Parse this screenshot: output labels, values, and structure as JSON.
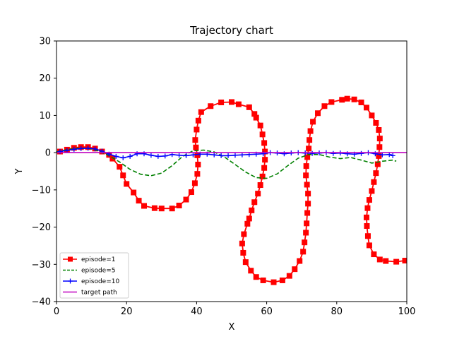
{
  "chart_data": {
    "type": "line",
    "title": "Trajectory chart",
    "xlabel": "X",
    "ylabel": "Y",
    "xlim": [
      0,
      100
    ],
    "ylim": [
      -40,
      30
    ],
    "xticks": [
      0,
      20,
      40,
      60,
      80,
      100
    ],
    "yticks": [
      -40,
      -30,
      -20,
      -10,
      0,
      10,
      20,
      30
    ],
    "grid": false,
    "legend_position": "lower-left",
    "series": [
      {
        "name": "episode=1",
        "color": "#ff0000",
        "style": "solid",
        "marker": "square",
        "points": [
          [
            1,
            0.3
          ],
          [
            3,
            0.8
          ],
          [
            5,
            1.3
          ],
          [
            7,
            1.5
          ],
          [
            9,
            1.5
          ],
          [
            11,
            1.1
          ],
          [
            13,
            0.3
          ],
          [
            15,
            -0.6
          ],
          [
            16,
            -1.6
          ],
          [
            18,
            -3.8
          ],
          [
            19,
            -6.1
          ],
          [
            20,
            -8.4
          ],
          [
            22,
            -10.7
          ],
          [
            23.5,
            -12.9
          ],
          [
            25,
            -14.3
          ],
          [
            28,
            -14.9
          ],
          [
            30,
            -15.0
          ],
          [
            33,
            -15.0
          ],
          [
            35,
            -14.2
          ],
          [
            37,
            -12.6
          ],
          [
            38.5,
            -10.6
          ],
          [
            39.5,
            -8.2
          ],
          [
            40.2,
            -5.7
          ],
          [
            40.4,
            -3.2
          ],
          [
            40.2,
            -0.7
          ],
          [
            39.8,
            1.4
          ],
          [
            39.6,
            3.4
          ],
          [
            40.0,
            6.2
          ],
          [
            40.5,
            8.6
          ],
          [
            41.3,
            10.9
          ],
          [
            44,
            12.5
          ],
          [
            47,
            13.5
          ],
          [
            50,
            13.6
          ],
          [
            52,
            13.0
          ],
          [
            55,
            12.2
          ],
          [
            56.5,
            10.4
          ],
          [
            57,
            9.4
          ],
          [
            58.2,
            7.3
          ],
          [
            58.8,
            4.9
          ],
          [
            59.3,
            2.6
          ],
          [
            59.5,
            0.3
          ],
          [
            59.5,
            -1.9
          ],
          [
            59.3,
            -4.1
          ],
          [
            58.8,
            -6.4
          ],
          [
            58.2,
            -8.7
          ],
          [
            57.5,
            -11.0
          ],
          [
            56.5,
            -13.3
          ],
          [
            55.7,
            -15.5
          ],
          [
            55.0,
            -17.7
          ],
          [
            54.5,
            -19.1
          ],
          [
            53.5,
            -21.9
          ],
          [
            53.0,
            -24.4
          ],
          [
            53.3,
            -26.9
          ],
          [
            54.0,
            -29.4
          ],
          [
            55.5,
            -31.7
          ],
          [
            57,
            -33.4
          ],
          [
            59,
            -34.3
          ],
          [
            62,
            -34.8
          ],
          [
            64.5,
            -34.3
          ],
          [
            66.5,
            -33.1
          ],
          [
            68,
            -31.3
          ],
          [
            69.4,
            -29.1
          ],
          [
            70.4,
            -26.6
          ],
          [
            70.8,
            -24.1
          ],
          [
            71.2,
            -21.5
          ],
          [
            71.4,
            -19.0
          ],
          [
            71.6,
            -16.2
          ],
          [
            71.8,
            -13.7
          ],
          [
            71.8,
            -11.0
          ],
          [
            71.5,
            -8.6
          ],
          [
            71.2,
            -6.1
          ],
          [
            71.3,
            -3.6
          ],
          [
            71.6,
            -1.2
          ],
          [
            72.0,
            1.1
          ],
          [
            72.2,
            3.4
          ],
          [
            72.5,
            5.8
          ],
          [
            73.2,
            8.3
          ],
          [
            74.6,
            10.6
          ],
          [
            76.5,
            12.5
          ],
          [
            78.5,
            13.6
          ],
          [
            81.5,
            14.2
          ],
          [
            83,
            14.5
          ],
          [
            85,
            14.3
          ],
          [
            87,
            13.5
          ],
          [
            88.5,
            12.1
          ],
          [
            90,
            10.0
          ],
          [
            91.2,
            8.0
          ],
          [
            92,
            6.1
          ],
          [
            92.3,
            3.8
          ],
          [
            92.2,
            1.5
          ],
          [
            92,
            -0.9
          ],
          [
            91.7,
            -3.1
          ],
          [
            91.2,
            -5.5
          ],
          [
            90.6,
            -7.9
          ],
          [
            90.0,
            -10.3
          ],
          [
            89.3,
            -12.7
          ],
          [
            88.8,
            -14.9
          ],
          [
            88.5,
            -17.4
          ],
          [
            88.6,
            -19.7
          ],
          [
            88.9,
            -22.4
          ],
          [
            89.3,
            -24.9
          ],
          [
            90.6,
            -27.3
          ],
          [
            92.3,
            -28.7
          ],
          [
            94,
            -29.1
          ],
          [
            97,
            -29.3
          ],
          [
            99.5,
            -29.0
          ]
        ]
      },
      {
        "name": "episode=5",
        "color": "#008000",
        "style": "dashed",
        "marker": "none",
        "points": [
          [
            0,
            0.2
          ],
          [
            3,
            0.8
          ],
          [
            6,
            1.2
          ],
          [
            9,
            1.2
          ],
          [
            12,
            0.5
          ],
          [
            15,
            -0.8
          ],
          [
            18,
            -2.5
          ],
          [
            21,
            -4.5
          ],
          [
            24,
            -5.8
          ],
          [
            27,
            -6.2
          ],
          [
            30,
            -5.5
          ],
          [
            33,
            -3.5
          ],
          [
            36,
            -1.0
          ],
          [
            39,
            0.5
          ],
          [
            42,
            0.7
          ],
          [
            45,
            0.2
          ],
          [
            48,
            -1.2
          ],
          [
            51,
            -3.2
          ],
          [
            54,
            -5.2
          ],
          [
            57,
            -6.7
          ],
          [
            60,
            -6.9
          ],
          [
            63,
            -5.7
          ],
          [
            66,
            -3.5
          ],
          [
            69,
            -1.5
          ],
          [
            72,
            -0.5
          ],
          [
            75,
            -0.5
          ],
          [
            78,
            -1.2
          ],
          [
            81,
            -1.6
          ],
          [
            84,
            -1.3
          ],
          [
            87,
            -2.0
          ],
          [
            90,
            -2.8
          ],
          [
            93,
            -2.3
          ],
          [
            96,
            -2.0
          ],
          [
            97,
            -2.3
          ]
        ]
      },
      {
        "name": "episode=10",
        "color": "#0000ff",
        "style": "solid",
        "marker": "plus",
        "points": [
          [
            1,
            0.3
          ],
          [
            3,
            0.6
          ],
          [
            5,
            0.9
          ],
          [
            7,
            1.1
          ],
          [
            9,
            1.2
          ],
          [
            11,
            1.0
          ],
          [
            13,
            0.4
          ],
          [
            15,
            -0.4
          ],
          [
            17,
            -1.0
          ],
          [
            19,
            -1.4
          ],
          [
            21,
            -1.0
          ],
          [
            23,
            -0.3
          ],
          [
            25,
            -0.3
          ],
          [
            27,
            -0.7
          ],
          [
            29,
            -1.0
          ],
          [
            31,
            -0.9
          ],
          [
            33,
            -0.5
          ],
          [
            35,
            -0.7
          ],
          [
            37,
            -0.8
          ],
          [
            39,
            -0.6
          ],
          [
            41,
            -0.4
          ],
          [
            43,
            -0.4
          ],
          [
            45,
            -0.6
          ],
          [
            47,
            -0.8
          ],
          [
            49,
            -0.8
          ],
          [
            51,
            -0.7
          ],
          [
            53,
            -0.6
          ],
          [
            55,
            -0.5
          ],
          [
            57,
            -0.4
          ],
          [
            59,
            -0.3
          ],
          [
            61,
            0.0
          ],
          [
            63,
            -0.1
          ],
          [
            65,
            -0.3
          ],
          [
            67,
            -0.1
          ],
          [
            69,
            0.0
          ],
          [
            71,
            -0.1
          ],
          [
            73,
            -0.2
          ],
          [
            75,
            -0.1
          ],
          [
            77,
            0.0
          ],
          [
            79,
            -0.2
          ],
          [
            81,
            -0.1
          ],
          [
            83,
            -0.3
          ],
          [
            85,
            -0.4
          ],
          [
            87,
            -0.2
          ],
          [
            89,
            0.0
          ],
          [
            91,
            -0.3
          ],
          [
            93,
            -0.6
          ],
          [
            95,
            -0.5
          ],
          [
            96,
            -0.8
          ]
        ]
      },
      {
        "name": "target path",
        "color": "#bf00bf",
        "style": "solid",
        "marker": "none",
        "points": [
          [
            0,
            0
          ],
          [
            100,
            0
          ]
        ]
      }
    ]
  }
}
